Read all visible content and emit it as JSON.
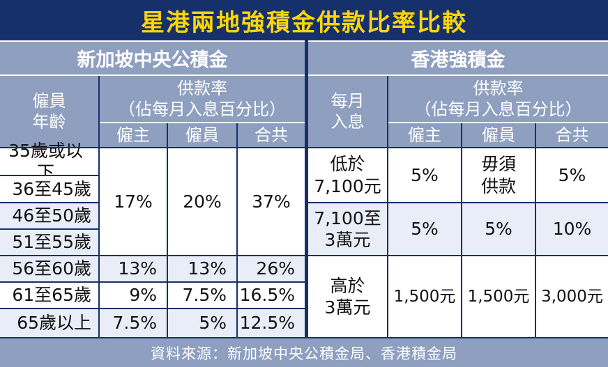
{
  "title": "星港兩地強積金供款比率比較",
  "singapore": {
    "heading": "新加坡中央公積金",
    "employee_age_header": "僱員\n年齡",
    "rate_header": "供款率\n（佔每月入息百分比）",
    "employer_header": "僱主",
    "employee_header": "僱員",
    "total_header": "合共",
    "ages": [
      "35歲或以下",
      "36至45歲",
      "46至50歲",
      "51至55歲",
      "56至60歲",
      "61至65歲",
      "65歲以上"
    ],
    "rates": [
      {
        "employer": "17%",
        "employee": "20%",
        "total": "37%"
      },
      {
        "employer": "13%",
        "employee": "13%",
        "total": "26%"
      },
      {
        "employer": "9%",
        "employee": "7.5%",
        "total": "16.5%"
      },
      {
        "employer": "7.5%",
        "employee": "5%",
        "total": "12.5%"
      }
    ]
  },
  "hongkong": {
    "heading": "香港強積金",
    "income_header": "每月\n入息",
    "rate_header": "供款率\n（佔每月入息百分比）",
    "employer_header": "僱主",
    "employee_header": "僱員",
    "total_header": "合共",
    "rows": [
      {
        "income": "低於\n7,100元",
        "employer": "5%",
        "employee": "毋須\n供款",
        "total": "5%"
      },
      {
        "income": "7,100至\n3萬元",
        "employer": "5%",
        "employee": "5%",
        "total": "10%"
      },
      {
        "income": "高於\n3萬元",
        "employer": "1,500元",
        "employee": "1,500元",
        "total": "3,000元"
      }
    ]
  },
  "source": "資料來源：新加坡中央公積金局、香港積金局",
  "colors": {
    "navy": "#16306b",
    "title_text": "#ffd60a",
    "header_bg": "#8e9fc0",
    "row_light": "#e8edf7"
  }
}
